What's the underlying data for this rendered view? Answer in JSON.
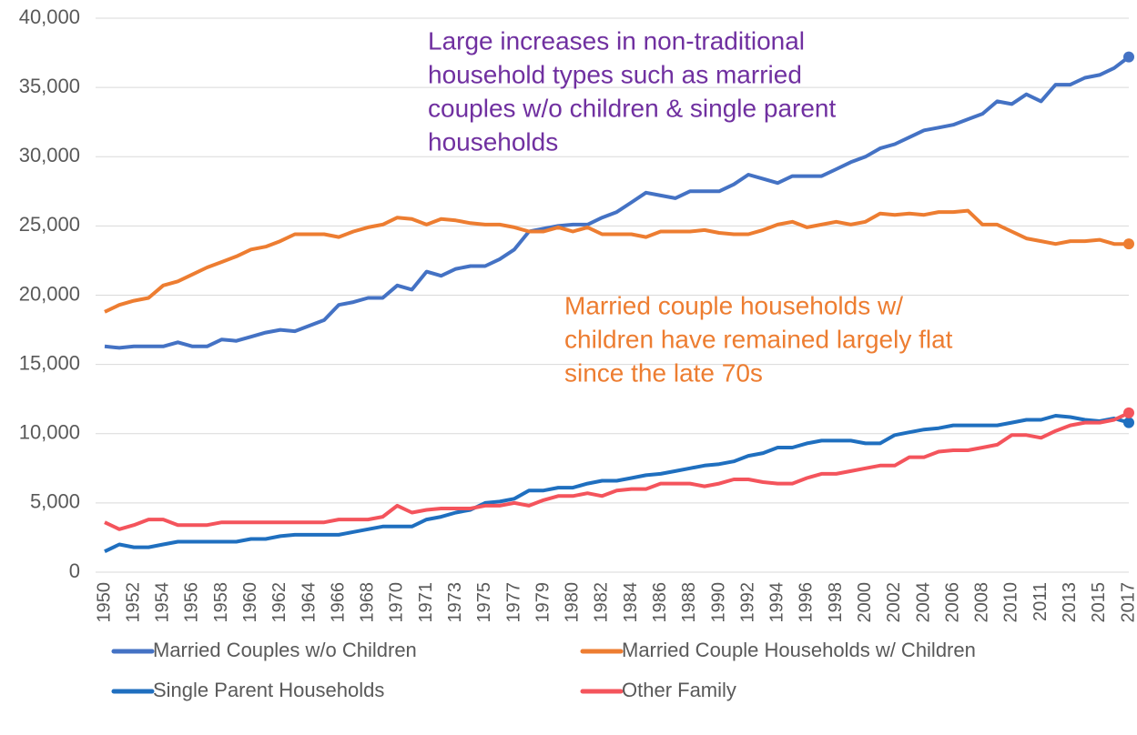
{
  "chart_data": {
    "type": "line",
    "categories": [
      1950,
      null,
      1952,
      null,
      1954,
      null,
      1956,
      null,
      1958,
      null,
      1960,
      null,
      1962,
      null,
      1964,
      null,
      1966,
      null,
      1968,
      null,
      1970,
      null,
      1971,
      null,
      1973,
      null,
      1975,
      null,
      1977,
      null,
      1979,
      null,
      1980,
      null,
      1982,
      null,
      1984,
      null,
      1986,
      null,
      1988,
      null,
      1990,
      null,
      1992,
      null,
      1994,
      null,
      1996,
      null,
      1998,
      null,
      2000,
      null,
      2002,
      null,
      2004,
      null,
      2006,
      null,
      2008,
      null,
      2010,
      null,
      2011,
      null,
      2013,
      null,
      2015,
      null,
      2017
    ],
    "series": [
      {
        "name": "Married Couples w/o Children",
        "color": "#4472c4",
        "values": [
          16300,
          16200,
          16300,
          16300,
          16300,
          16600,
          16300,
          16300,
          16800,
          16700,
          17000,
          17300,
          17500,
          17400,
          17800,
          18200,
          19300,
          19500,
          19800,
          19800,
          20700,
          20400,
          21700,
          21400,
          21900,
          22100,
          22100,
          22600,
          23300,
          24600,
          24800,
          25000,
          25100,
          25100,
          25600,
          26000,
          26700,
          27400,
          27200,
          27000,
          27500,
          27500,
          27500,
          28000,
          28700,
          28400,
          28100,
          28600,
          28600,
          28600,
          29100,
          29600,
          30000,
          30600,
          30900,
          31400,
          31900,
          32100,
          32300,
          32700,
          33100,
          34000,
          33800,
          34500,
          34000,
          35200,
          35200,
          35700,
          35900,
          36400,
          37200
        ]
      },
      {
        "name": "Married Couple Households w/ Children",
        "color": "#ed7d31",
        "values": [
          18800,
          19300,
          19600,
          19800,
          20700,
          21000,
          21500,
          22000,
          22400,
          22800,
          23300,
          23500,
          23900,
          24400,
          24400,
          24400,
          24200,
          24600,
          24900,
          25100,
          25600,
          25500,
          25100,
          25500,
          25400,
          25200,
          25100,
          25100,
          24900,
          24600,
          24600,
          24900,
          24600,
          24900,
          24400,
          24400,
          24400,
          24200,
          24600,
          24600,
          24600,
          24700,
          24500,
          24400,
          24400,
          24700,
          25100,
          25300,
          24900,
          25100,
          25300,
          25100,
          25300,
          25900,
          25800,
          25900,
          25800,
          26000,
          26000,
          26100,
          25100,
          25100,
          24600,
          24100,
          23900,
          23700,
          23900,
          23900,
          24000,
          23700,
          23700
        ]
      },
      {
        "name": "Single Parent Households",
        "color": "#1f6fbf",
        "values": [
          1500,
          2000,
          1800,
          1800,
          2000,
          2200,
          2200,
          2200,
          2200,
          2200,
          2400,
          2400,
          2600,
          2700,
          2700,
          2700,
          2700,
          2900,
          3100,
          3300,
          3300,
          3300,
          3800,
          4000,
          4300,
          4500,
          5000,
          5100,
          5300,
          5900,
          5900,
          6100,
          6100,
          6400,
          6600,
          6600,
          6800,
          7000,
          7100,
          7300,
          7500,
          7700,
          7800,
          8000,
          8400,
          8600,
          9000,
          9000,
          9300,
          9500,
          9500,
          9500,
          9300,
          9300,
          9900,
          10100,
          10300,
          10400,
          10600,
          10600,
          10600,
          10600,
          10800,
          11000,
          11000,
          11300,
          11200,
          11000,
          10900,
          11100,
          10800
        ]
      },
      {
        "name": "Other Family",
        "color": "#f4545c",
        "values": [
          3600,
          3100,
          3400,
          3800,
          3800,
          3400,
          3400,
          3400,
          3600,
          3600,
          3600,
          3600,
          3600,
          3600,
          3600,
          3600,
          3800,
          3800,
          3800,
          4000,
          4800,
          4300,
          4500,
          4600,
          4600,
          4600,
          4800,
          4800,
          5000,
          4800,
          5200,
          5500,
          5500,
          5700,
          5500,
          5900,
          6000,
          6000,
          6400,
          6400,
          6400,
          6200,
          6400,
          6700,
          6700,
          6500,
          6400,
          6400,
          6800,
          7100,
          7100,
          7300,
          7500,
          7700,
          7700,
          8300,
          8300,
          8700,
          8800,
          8800,
          9000,
          9200,
          9900,
          9900,
          9700,
          10200,
          10600,
          10800,
          10800,
          11000,
          11500
        ]
      }
    ],
    "ylim": [
      0,
      40000
    ],
    "yticks": [
      0,
      {
        "value": 5000,
        "label": "5,000"
      },
      {
        "value": 10000,
        "label": "10,000"
      },
      {
        "value": 15000,
        "label": "15,000"
      },
      {
        "value": 20000,
        "label": "20,000"
      },
      {
        "value": 25000,
        "label": "25,000"
      },
      {
        "value": 30000,
        "label": "30,000"
      },
      {
        "value": 35000,
        "label": "35,000"
      },
      {
        "value": 40000,
        "label": "40,000"
      }
    ],
    "grid": true,
    "annotations": [
      {
        "color": "#7030a0",
        "lines": [
          "Large increases in non-traditional",
          "household types such as married",
          "couples w/o children & single parent",
          "households"
        ]
      },
      {
        "color": "#ed7d31",
        "lines": [
          "Married couple households w/",
          "children have remained largely flat",
          "since the late 70s"
        ]
      }
    ]
  }
}
